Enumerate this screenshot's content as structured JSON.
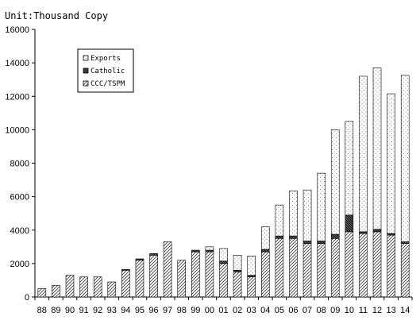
{
  "chart_data": {
    "type": "bar",
    "stacked": true,
    "unit_label": "Unit:Thousand Copy",
    "title": "",
    "xlabel": "",
    "ylabel": "",
    "ylim": [
      0,
      16000
    ],
    "yticks": [
      0,
      2000,
      4000,
      6000,
      8000,
      10000,
      12000,
      14000,
      16000
    ],
    "grid": false,
    "legend_position": "top-left",
    "categories": [
      "88",
      "89",
      "90",
      "91",
      "92",
      "93",
      "94",
      "95",
      "96",
      "97",
      "98",
      "99",
      "00",
      "01",
      "02",
      "03",
      "04",
      "05",
      "06",
      "07",
      "08",
      "09",
      "10",
      "11",
      "12",
      "13",
      "14"
    ],
    "series": [
      {
        "name": "CCC/TSPM",
        "pattern": "diagonal-hatch",
        "values": [
          500,
          700,
          1300,
          1200,
          1200,
          900,
          1600,
          2200,
          2500,
          3300,
          2200,
          2700,
          2700,
          2000,
          1500,
          1200,
          2700,
          3500,
          3500,
          3200,
          3200,
          3500,
          3900,
          3800,
          3900,
          3700,
          3200
        ]
      },
      {
        "name": "Catholic",
        "pattern": "dark-hatch",
        "values": [
          0,
          0,
          0,
          0,
          0,
          0,
          50,
          80,
          100,
          0,
          0,
          100,
          100,
          150,
          100,
          100,
          150,
          150,
          150,
          150,
          150,
          250,
          1000,
          100,
          150,
          100,
          100
        ]
      },
      {
        "name": "Exports",
        "pattern": "light-stipple",
        "values": [
          0,
          0,
          0,
          0,
          0,
          0,
          0,
          0,
          0,
          0,
          0,
          0,
          200,
          750,
          900,
          1150,
          1350,
          1850,
          2700,
          3050,
          4050,
          6250,
          5600,
          9300,
          9650,
          8350,
          9950
        ]
      }
    ],
    "totals_note": ""
  }
}
